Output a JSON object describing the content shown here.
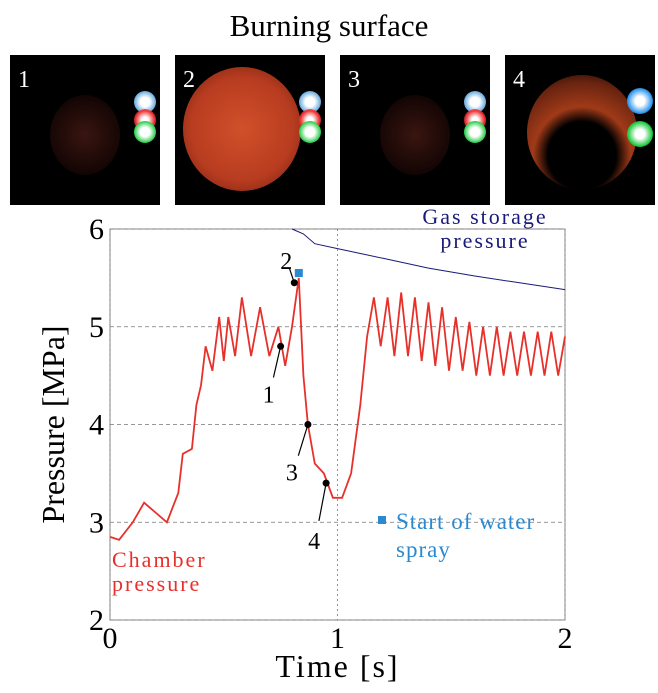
{
  "title": "Burning surface",
  "panels": [
    "1",
    "2",
    "3",
    "4"
  ],
  "chart_data": {
    "type": "line",
    "xlabel": "Time [s]",
    "ylabel": "Pressure [MPa]",
    "xlim": [
      0,
      2
    ],
    "ylim": [
      2,
      6
    ],
    "xticks": [
      0,
      1,
      2
    ],
    "yticks": [
      2,
      3,
      4,
      5,
      6
    ],
    "grid": true,
    "series": [
      {
        "name": "Chamber pressure",
        "color": "#e8302a",
        "x": [
          0,
          0.04,
          0.1,
          0.15,
          0.2,
          0.25,
          0.3,
          0.32,
          0.36,
          0.38,
          0.4,
          0.42,
          0.45,
          0.48,
          0.5,
          0.52,
          0.55,
          0.58,
          0.62,
          0.66,
          0.7,
          0.74,
          0.77,
          0.8,
          0.83,
          0.85,
          0.87,
          0.9,
          0.94,
          0.98,
          1.02,
          1.06,
          1.1,
          1.13,
          1.16,
          1.19,
          1.22,
          1.25,
          1.28,
          1.31,
          1.34,
          1.37,
          1.4,
          1.43,
          1.46,
          1.49,
          1.52,
          1.55,
          1.58,
          1.61,
          1.64,
          1.67,
          1.7,
          1.73,
          1.76,
          1.79,
          1.82,
          1.85,
          1.88,
          1.91,
          1.94,
          1.97,
          2.0
        ],
        "values": [
          2.85,
          2.82,
          3.0,
          3.2,
          3.1,
          3.0,
          3.3,
          3.7,
          3.75,
          4.2,
          4.4,
          4.8,
          4.55,
          5.1,
          4.65,
          5.1,
          4.7,
          5.3,
          4.7,
          5.2,
          4.7,
          5.0,
          4.6,
          5.0,
          5.5,
          4.5,
          4.0,
          3.6,
          3.5,
          3.25,
          3.25,
          3.5,
          4.2,
          4.9,
          5.3,
          4.8,
          5.3,
          4.7,
          5.35,
          4.7,
          5.3,
          4.65,
          5.25,
          4.6,
          5.2,
          4.55,
          5.1,
          4.55,
          5.05,
          4.5,
          5.0,
          4.5,
          5.0,
          4.5,
          4.95,
          4.5,
          4.95,
          4.5,
          4.95,
          4.5,
          4.95,
          4.5,
          4.9
        ]
      },
      {
        "name": "Gas storage pressure",
        "color": "#1a1a7a",
        "x": [
          0.8,
          0.85,
          0.9,
          1.0,
          1.2,
          1.4,
          1.6,
          1.8,
          2.0
        ],
        "values": [
          6.0,
          5.95,
          5.85,
          5.8,
          5.7,
          5.6,
          5.52,
          5.45,
          5.38
        ]
      }
    ],
    "points": [
      {
        "label": "1",
        "x": 0.75,
        "y": 4.8
      },
      {
        "label": "2",
        "x": 0.81,
        "y": 5.45
      },
      {
        "label": "3",
        "x": 0.87,
        "y": 4.0
      },
      {
        "label": "4",
        "x": 0.95,
        "y": 3.4
      }
    ],
    "marker": {
      "name": "Start of water spray",
      "x": 0.83,
      "y": 5.55,
      "color": "#2a8ad0"
    }
  }
}
